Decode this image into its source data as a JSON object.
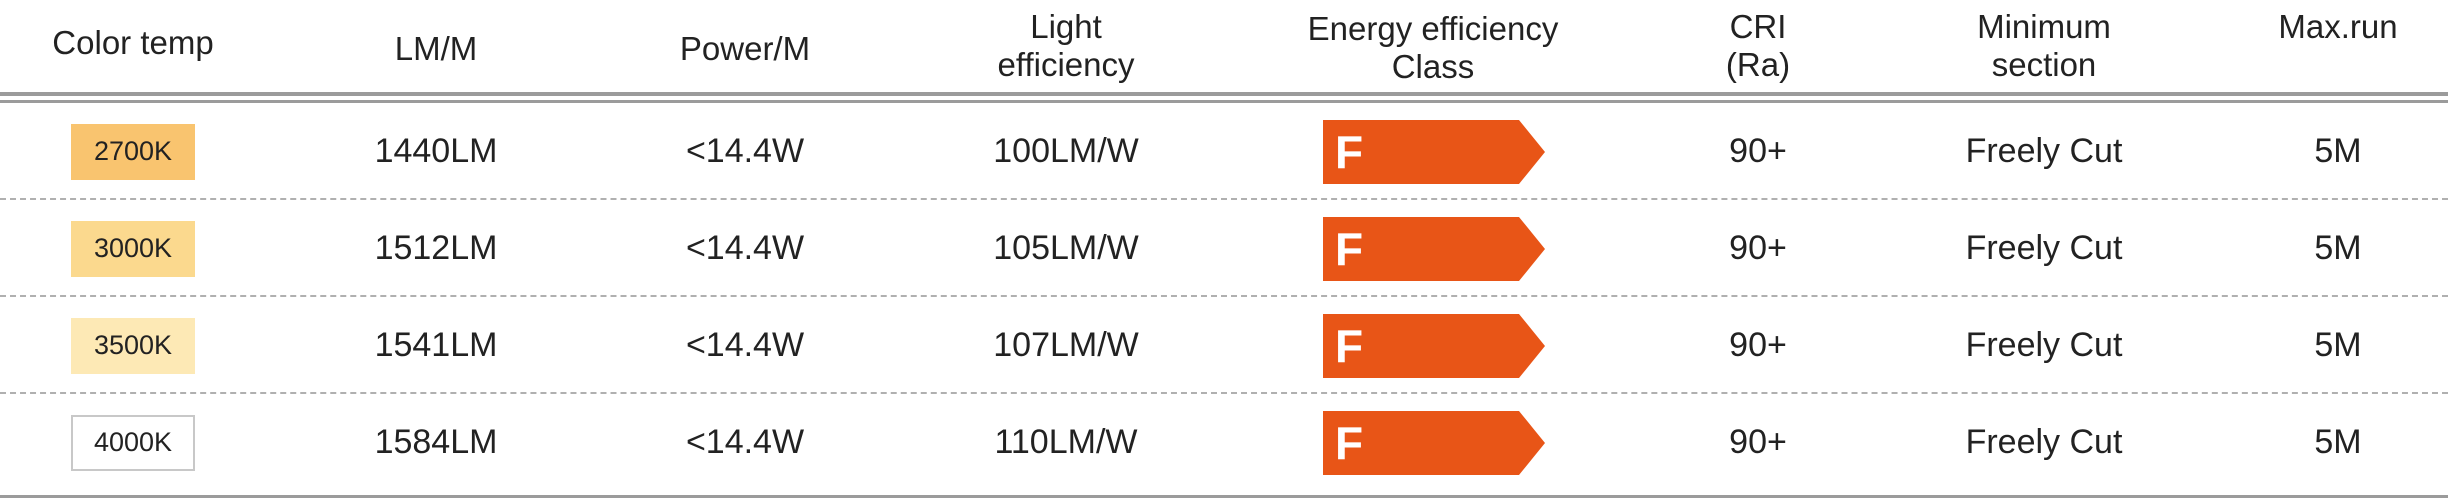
{
  "headers": {
    "color_temp": "Color temp",
    "lm": "LM/M",
    "power": "Power/M",
    "light_eff_1": "Light",
    "light_eff_2": "efficiency",
    "energy_1": "Energy efficiency",
    "energy_2": "Class",
    "cri_1": "CRI",
    "cri_2": "(Ra)",
    "min_1": "Minimum",
    "min_2": "section",
    "maxrun": "Max.run"
  },
  "rows": [
    {
      "color_temp": "2700K",
      "swatch_color": "#f9c46f",
      "lm": "1440LM",
      "power": "<14.4W",
      "efficiency": "100LM/W",
      "energy_class": "F",
      "cri": "90+",
      "min_section": "Freely Cut",
      "max_run": "5M"
    },
    {
      "color_temp": "3000K",
      "swatch_color": "#fbd98e",
      "lm": "1512LM",
      "power": "<14.4W",
      "efficiency": "105LM/W",
      "energy_class": "F",
      "cri": "90+",
      "min_section": "Freely Cut",
      "max_run": "5M"
    },
    {
      "color_temp": "3500K",
      "swatch_color": "#fde9b5",
      "lm": "1541LM",
      "power": "<14.4W",
      "efficiency": "107LM/W",
      "energy_class": "F",
      "cri": "90+",
      "min_section": "Freely Cut",
      "max_run": "5M"
    },
    {
      "color_temp": "4000K",
      "swatch_color": "#ffffff",
      "lm": "1584LM",
      "power": "<14.4W",
      "efficiency": "110LM/W",
      "energy_class": "F",
      "cri": "90+",
      "min_section": "Freely Cut",
      "max_run": "5M"
    }
  ],
  "colors": {
    "energy_arrow": "#e85517",
    "rule": "#9b9b9b",
    "dashed": "#b0b0b0",
    "swatch_border_white": "#c8c8c8"
  }
}
